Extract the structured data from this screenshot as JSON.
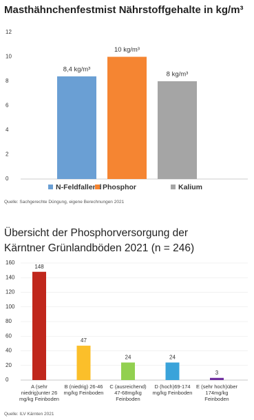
{
  "chart_data": [
    {
      "type": "bar",
      "title": "Masthähnchenfestmist Nährstoffgehalte in kg/m³",
      "series": [
        {
          "name": "N-Feldfallend",
          "color": "#6a9fd4",
          "values": [
            8.4
          ],
          "value_labels": [
            "8,4 kg/m³"
          ]
        },
        {
          "name": "Phosphor",
          "color": "#f58532",
          "values": [
            10
          ],
          "value_labels": [
            "10 kg/m³"
          ]
        },
        {
          "name": "Kalium",
          "color": "#a5a5a5",
          "values": [
            8
          ],
          "value_labels": [
            "8 kg/m³"
          ]
        }
      ],
      "ylim": [
        0,
        12
      ],
      "yticks": [
        0,
        2,
        4,
        6,
        8,
        10,
        12
      ],
      "grid": false,
      "legend": "bottom",
      "source": "Quelle: Sachgerechte Düngung, eigene Berechnungen 2021"
    },
    {
      "type": "bar",
      "title": "Übersicht der Phosphorversorgung der Kärntner Grünlandböden 2021 (n = 246)",
      "categories": [
        "A (sehr niedrig)unter 26 mg/kg Feinboden",
        "B (niedrig) 26-46 mg/kg Feinboden",
        "C (ausreichend) 47-68mg/kg Feinboden",
        "D (hoch)69-174 mg/kg Feinboden",
        "E (sehr hoch)über 174mg/kg Feinboden"
      ],
      "values": [
        148,
        47,
        24,
        24,
        3
      ],
      "colors": [
        "#c0271c",
        "#fbbf2a",
        "#92d050",
        "#3aa3da",
        "#7030a0"
      ],
      "ylim": [
        0,
        160
      ],
      "yticks": [
        0,
        20,
        40,
        60,
        80,
        100,
        120,
        140,
        160
      ],
      "grid": true,
      "source": "Quelle: ILV Kärnten 2021"
    }
  ]
}
